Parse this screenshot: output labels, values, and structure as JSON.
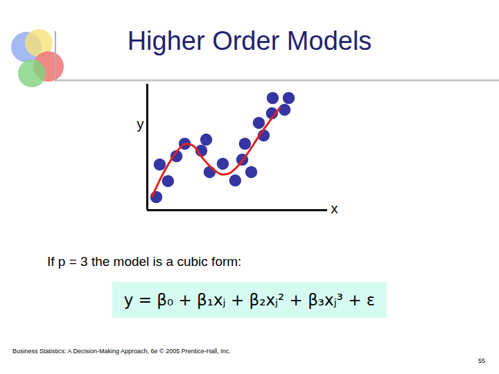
{
  "chart_data": {
    "type": "scatter",
    "title": "Higher Order Models",
    "x_label": "x",
    "y_label": "y",
    "xlim": [
      0,
      10
    ],
    "ylim": [
      0,
      7
    ],
    "xticks": [],
    "yticks": [],
    "tick_labels": false,
    "grid": false,
    "series": [
      {
        "type": "scatter",
        "color": "#3636a2",
        "marker": "circle",
        "x": [
          0.5,
          1.15,
          0.69,
          1.62,
          2.08,
          3.0,
          3.27,
          3.46,
          4.19,
          4.88,
          5.42,
          5.27,
          5.77,
          6.19,
          6.46,
          6.92,
          6.96,
          7.62,
          7.85
        ],
        "values": [
          0.73,
          1.62,
          2.54,
          3.0,
          3.69,
          3.31,
          3.92,
          2.12,
          2.58,
          1.65,
          3.69,
          2.81,
          2.12,
          4.85,
          4.15,
          5.38,
          6.23,
          5.58,
          6.23
        ]
      },
      {
        "type": "line",
        "color": "#e02020",
        "line_style": "solid",
        "x": [
          0.27,
          0.88,
          1.46,
          2.04,
          2.54,
          3.08,
          3.62,
          4.08,
          4.54,
          5.0,
          5.54,
          6.15,
          6.77,
          7.35
        ],
        "values": [
          0.77,
          2.04,
          3.0,
          3.65,
          3.58,
          2.88,
          2.31,
          2.0,
          2.04,
          2.42,
          3.12,
          4.04,
          4.92,
          5.69
        ]
      }
    ]
  },
  "slide": {
    "text": "If p = 3 the model is a cubic form:",
    "equation": "y = β₀ + β₁xⱼ + β₂xⱼ² + β₃xⱼ³ + ε",
    "footer": "Business Statistics: A Decision-Making Approach, 6e © 2005 Prentice-Hall, Inc.",
    "page": 55
  }
}
